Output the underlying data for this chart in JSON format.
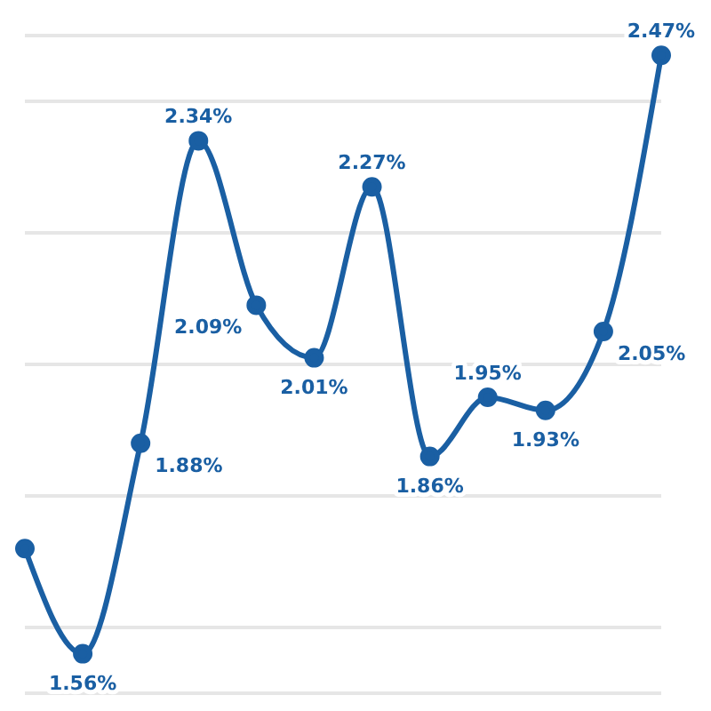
{
  "chart_data": {
    "type": "line",
    "categories": [
      null,
      null,
      null,
      null,
      null,
      null,
      null,
      null,
      null,
      null,
      null,
      null
    ],
    "series": [
      {
        "color": "#1a5fa3",
        "values": [
          1.72,
          1.56,
          1.88,
          2.34,
          2.09,
          2.01,
          2.27,
          1.86,
          1.95,
          1.93,
          2.05,
          2.47
        ],
        "value_labels": [
          null,
          "1.56%",
          "1.88%",
          "2.34%",
          "2.09%",
          "2.01%",
          "2.27%",
          "1.86%",
          "1.95%",
          "1.93%",
          "2.05%",
          "2.47%"
        ]
      }
    ],
    "ylim": [
      1.5,
      2.5
    ],
    "yticks": [
      {
        "value": 1.6,
        "label": null
      },
      {
        "value": 1.8,
        "label": null
      },
      {
        "value": 2.0,
        "label": null
      },
      {
        "value": 2.2,
        "label": null
      },
      {
        "value": 2.4,
        "label": null
      }
    ],
    "grid": "y",
    "tick_labels": false,
    "marker": "circle",
    "line_style": "solid",
    "legend": false
  }
}
